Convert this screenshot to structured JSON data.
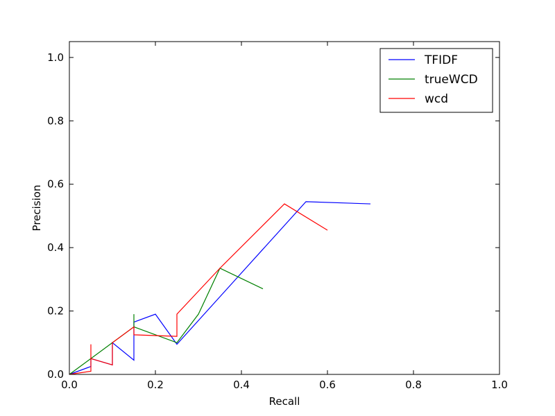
{
  "chart_data": {
    "type": "line",
    "xlabel": "Recall",
    "ylabel": "Precision",
    "xlim": [
      0.0,
      1.0
    ],
    "ylim": [
      0.0,
      1.05
    ],
    "xticks": [
      "0.0",
      "0.2",
      "0.4",
      "0.6",
      "0.8",
      "1.0"
    ],
    "yticks": [
      "0.0",
      "0.2",
      "0.4",
      "0.6",
      "0.8",
      "1.0"
    ],
    "grid": false,
    "legend_position": "top-right",
    "series": [
      {
        "name": "TFIDF",
        "color": "#0000ff",
        "x": [
          0.0,
          0.05,
          0.05,
          0.1,
          0.1,
          0.15,
          0.15,
          0.2,
          0.25,
          0.35,
          0.45,
          0.55,
          0.7
        ],
        "y": [
          0.0,
          0.025,
          0.05,
          0.03,
          0.1,
          0.045,
          0.165,
          0.19,
          0.095,
          0.245,
          0.395,
          0.545,
          0.538
        ]
      },
      {
        "name": "trueWCD",
        "color": "#008000",
        "x": [
          0.0,
          0.05,
          0.1,
          0.15,
          0.15,
          0.15,
          0.25,
          0.3,
          0.35,
          0.45
        ],
        "y": [
          0.0,
          0.05,
          0.1,
          0.15,
          0.19,
          0.15,
          0.1,
          0.19,
          0.335,
          0.27
        ]
      },
      {
        "name": "wcd",
        "color": "#ff0000",
        "x": [
          0.0,
          0.05,
          0.05,
          0.05,
          0.1,
          0.1,
          0.15,
          0.15,
          0.25,
          0.25,
          0.35,
          0.5,
          0.6
        ],
        "y": [
          0.0,
          0.01,
          0.095,
          0.05,
          0.03,
          0.1,
          0.15,
          0.125,
          0.12,
          0.19,
          0.335,
          0.538,
          0.455
        ]
      }
    ]
  }
}
